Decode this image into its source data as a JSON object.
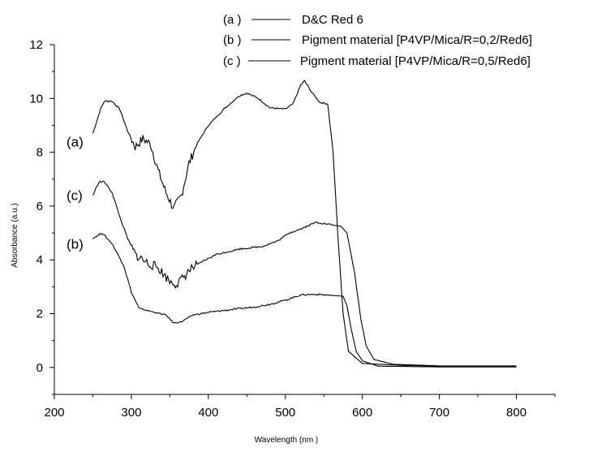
{
  "chart_data": {
    "type": "line",
    "xlabel": "Wavelength",
    "xlabel_unit": "(nm )",
    "ylabel": "Absorbance",
    "ylabel_unit": "(a.u.)",
    "xlim": [
      200,
      850
    ],
    "ylim": [
      -1,
      12
    ],
    "x_ticks": [
      200,
      300,
      400,
      500,
      600,
      700,
      800
    ],
    "y_ticks": [
      0,
      2,
      4,
      6,
      8,
      10,
      12
    ],
    "grid": false,
    "legend_position": "top",
    "series": [
      {
        "name": "D&C Red 6",
        "legend_key": "(a )",
        "curve_label": "(a)",
        "color": "#000000",
        "points": [
          [
            250,
            8.7
          ],
          [
            260,
            9.6
          ],
          [
            265,
            9.9
          ],
          [
            275,
            9.9
          ],
          [
            285,
            9.6
          ],
          [
            295,
            8.8
          ],
          [
            305,
            8.2
          ],
          [
            315,
            8.5
          ],
          [
            325,
            8.3
          ],
          [
            335,
            7.3
          ],
          [
            345,
            6.5
          ],
          [
            355,
            5.9
          ],
          [
            365,
            6.4
          ],
          [
            375,
            7.6
          ],
          [
            385,
            8.3
          ],
          [
            400,
            9.0
          ],
          [
            420,
            9.6
          ],
          [
            440,
            10.1
          ],
          [
            450,
            10.2
          ],
          [
            465,
            10.0
          ],
          [
            480,
            9.65
          ],
          [
            500,
            9.6
          ],
          [
            510,
            9.8
          ],
          [
            520,
            10.5
          ],
          [
            525,
            10.65
          ],
          [
            535,
            10.2
          ],
          [
            545,
            9.85
          ],
          [
            555,
            9.8
          ],
          [
            562,
            8.0
          ],
          [
            568,
            5.0
          ],
          [
            575,
            2.0
          ],
          [
            582,
            0.6
          ],
          [
            600,
            0.15
          ],
          [
            650,
            0.08
          ],
          [
            700,
            0.05
          ],
          [
            800,
            0.05
          ]
        ]
      },
      {
        "name": "Pigment material [P4VP/Mica/R=0,2/Red6]",
        "legend_key": "(b )",
        "curve_label": "(b)",
        "color": "#000000",
        "points": [
          [
            250,
            4.8
          ],
          [
            262,
            5.0
          ],
          [
            275,
            4.6
          ],
          [
            290,
            3.8
          ],
          [
            300,
            2.8
          ],
          [
            310,
            2.2
          ],
          [
            330,
            2.05
          ],
          [
            345,
            1.95
          ],
          [
            355,
            1.65
          ],
          [
            365,
            1.7
          ],
          [
            380,
            1.95
          ],
          [
            400,
            2.05
          ],
          [
            430,
            2.15
          ],
          [
            460,
            2.25
          ],
          [
            480,
            2.35
          ],
          [
            500,
            2.5
          ],
          [
            520,
            2.7
          ],
          [
            540,
            2.72
          ],
          [
            560,
            2.68
          ],
          [
            575,
            2.65
          ],
          [
            580,
            2.3
          ],
          [
            585,
            1.5
          ],
          [
            592,
            0.6
          ],
          [
            600,
            0.25
          ],
          [
            620,
            0.05
          ],
          [
            700,
            0.02
          ],
          [
            800,
            0.02
          ]
        ]
      },
      {
        "name": "Pigment material [P4VP/Mica/R=0,5/Red6]",
        "legend_key": "(c )",
        "curve_label": "(c)",
        "color": "#000000",
        "points": [
          [
            250,
            6.4
          ],
          [
            258,
            6.9
          ],
          [
            265,
            6.9
          ],
          [
            275,
            6.5
          ],
          [
            285,
            5.6
          ],
          [
            295,
            4.8
          ],
          [
            305,
            4.2
          ],
          [
            320,
            3.9
          ],
          [
            335,
            3.7
          ],
          [
            350,
            3.2
          ],
          [
            360,
            3.1
          ],
          [
            375,
            3.6
          ],
          [
            390,
            3.9
          ],
          [
            410,
            4.2
          ],
          [
            440,
            4.4
          ],
          [
            470,
            4.5
          ],
          [
            490,
            4.7
          ],
          [
            505,
            5.0
          ],
          [
            520,
            5.15
          ],
          [
            540,
            5.4
          ],
          [
            560,
            5.3
          ],
          [
            572,
            5.25
          ],
          [
            580,
            5.0
          ],
          [
            590,
            3.5
          ],
          [
            598,
            1.8
          ],
          [
            605,
            0.8
          ],
          [
            615,
            0.3
          ],
          [
            640,
            0.12
          ],
          [
            700,
            0.06
          ],
          [
            800,
            0.06
          ]
        ]
      }
    ]
  }
}
